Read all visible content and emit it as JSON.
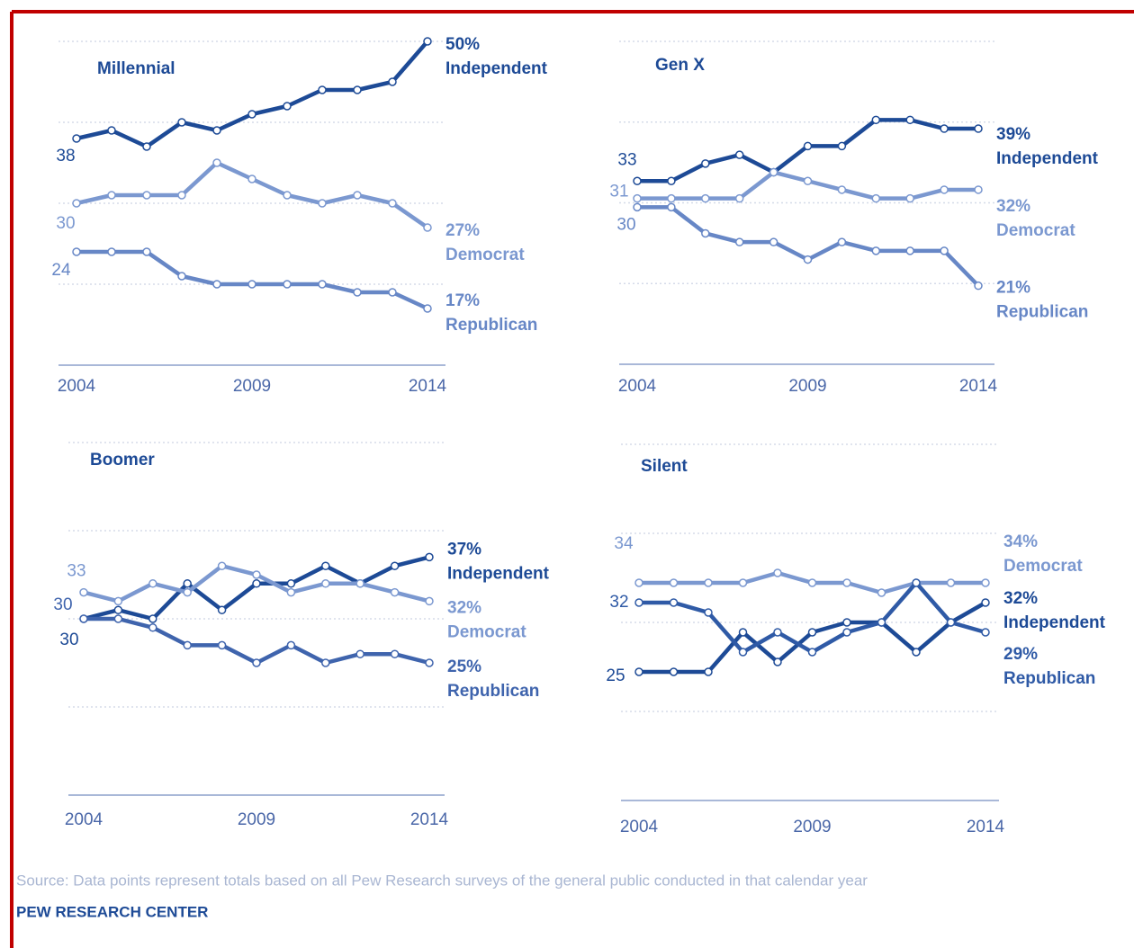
{
  "chart_data": [
    {
      "type": "line",
      "title": "Millennial",
      "x": [
        2004,
        2005,
        2006,
        2007,
        2008,
        2009,
        2010,
        2011,
        2012,
        2013,
        2014
      ],
      "xlim": [
        2004,
        2014
      ],
      "xticks": [
        2004,
        2009,
        2014
      ],
      "ylim": [
        10,
        50
      ],
      "series": [
        {
          "name": "Independent",
          "color": "#1d4a96",
          "values": [
            38,
            39,
            37,
            40,
            39,
            41,
            42,
            44,
            44,
            45,
            50
          ],
          "value_labels": [
            "38",
            null,
            null,
            null,
            null,
            null,
            null,
            null,
            null,
            null,
            "50%"
          ]
        },
        {
          "name": "Democrat",
          "color": "#7b98d0",
          "values": [
            30,
            31,
            31,
            31,
            35,
            33,
            31,
            30,
            31,
            30,
            27
          ],
          "value_labels": [
            "30",
            null,
            null,
            null,
            null,
            null,
            null,
            null,
            null,
            null,
            "27%"
          ]
        },
        {
          "name": "Republican",
          "color": "#6787c6",
          "values": [
            24,
            24,
            24,
            21,
            20,
            20,
            20,
            20,
            19,
            19,
            17
          ],
          "value_labels": [
            "24",
            null,
            null,
            null,
            null,
            null,
            null,
            null,
            null,
            null,
            "17%"
          ]
        }
      ]
    },
    {
      "type": "line",
      "title": "Gen X",
      "x": [
        2004,
        2005,
        2006,
        2007,
        2008,
        2009,
        2010,
        2011,
        2012,
        2013,
        2014
      ],
      "xlim": [
        2004,
        2014
      ],
      "xticks": [
        2004,
        2009,
        2014
      ],
      "ylim": [
        12,
        49
      ],
      "series": [
        {
          "name": "Independent",
          "color": "#1d4a96",
          "values": [
            33,
            33,
            35,
            36,
            34,
            37,
            37,
            40,
            40,
            39,
            39
          ],
          "value_labels": [
            "33",
            null,
            null,
            null,
            null,
            null,
            null,
            null,
            null,
            null,
            "39%"
          ]
        },
        {
          "name": "Democrat",
          "color": "#7b98d0",
          "values": [
            31,
            31,
            31,
            31,
            34,
            33,
            32,
            31,
            31,
            32,
            32
          ],
          "value_labels": [
            "31",
            null,
            null,
            null,
            null,
            null,
            null,
            null,
            null,
            null,
            "32%"
          ]
        },
        {
          "name": "Republican",
          "color": "#6787c6",
          "values": [
            30,
            30,
            27,
            26,
            26,
            24,
            26,
            25,
            25,
            25,
            21
          ],
          "value_labels": [
            "30",
            null,
            null,
            null,
            null,
            null,
            null,
            null,
            null,
            null,
            "21%"
          ]
        }
      ]
    },
    {
      "type": "line",
      "title": "Boomer",
      "x": [
        2004,
        2005,
        2006,
        2007,
        2008,
        2009,
        2010,
        2011,
        2012,
        2013,
        2014
      ],
      "xlim": [
        2004,
        2014
      ],
      "xticks": [
        2004,
        2009,
        2014
      ],
      "ylim": [
        10,
        50
      ],
      "series": [
        {
          "name": "Independent",
          "color": "#1d4a96",
          "values": [
            30,
            31,
            30,
            34,
            31,
            34,
            34,
            36,
            34,
            36,
            37
          ],
          "value_labels": [
            "30",
            null,
            null,
            null,
            null,
            null,
            null,
            null,
            null,
            null,
            "37%"
          ]
        },
        {
          "name": "Democrat",
          "color": "#7b98d0",
          "values": [
            33,
            32,
            34,
            33,
            36,
            35,
            33,
            34,
            34,
            33,
            32
          ],
          "value_labels": [
            "33",
            null,
            null,
            null,
            null,
            null,
            null,
            null,
            null,
            null,
            "32%"
          ]
        },
        {
          "name": "Republican",
          "color": "#3f64ad",
          "values": [
            30,
            30,
            29,
            27,
            27,
            25,
            27,
            25,
            26,
            26,
            25
          ],
          "value_labels": [
            "30",
            null,
            null,
            null,
            null,
            null,
            null,
            null,
            null,
            null,
            "25%"
          ]
        }
      ]
    },
    {
      "type": "line",
      "title": "Silent",
      "x": [
        2004,
        2005,
        2006,
        2007,
        2008,
        2009,
        2010,
        2011,
        2012,
        2013,
        2014
      ],
      "xlim": [
        2004,
        2014
      ],
      "xticks": [
        2004,
        2009,
        2014
      ],
      "ylim": [
        12,
        48
      ],
      "series": [
        {
          "name": "Independent",
          "color": "#1d4a96",
          "values": [
            25,
            25,
            25,
            29,
            26,
            29,
            30,
            30,
            27,
            30,
            32
          ],
          "value_labels": [
            "25",
            null,
            null,
            null,
            null,
            null,
            null,
            null,
            null,
            null,
            "32%"
          ]
        },
        {
          "name": "Democrat",
          "color": "#7b98d0",
          "values": [
            34,
            34,
            34,
            34,
            35,
            34,
            34,
            33,
            34,
            34,
            34
          ],
          "value_labels": [
            "34",
            null,
            null,
            null,
            null,
            null,
            null,
            null,
            null,
            null,
            "34%"
          ]
        },
        {
          "name": "Republican",
          "color": "#2f5aa6",
          "values": [
            32,
            32,
            31,
            27,
            29,
            27,
            29,
            30,
            34,
            30,
            29
          ],
          "value_labels": [
            "32",
            null,
            null,
            null,
            null,
            null,
            null,
            null,
            null,
            null,
            "29%"
          ]
        }
      ]
    }
  ],
  "source": "Source: Data points represent totals based on all Pew Research surveys of the general public conducted in that calendar year",
  "brand": "PEW RESEARCH CENTER"
}
